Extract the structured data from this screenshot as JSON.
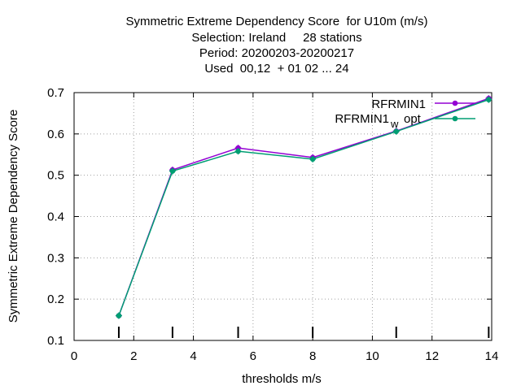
{
  "chart_data": {
    "type": "line",
    "title": [
      "Symmetric Extreme Dependency Score  for U10m (m/s)",
      "Selection: Ireland     28 stations",
      "Period: 20200203-20200217",
      "Used  00,12  + 01 02 ... 24"
    ],
    "xlabel": "thresholds m/s",
    "ylabel": "Symmetric Extreme Dependency Score",
    "xlim": [
      0,
      14
    ],
    "ylim": [
      0.1,
      0.7
    ],
    "xticks": [
      "0",
      "2",
      "4",
      "6",
      "8",
      "10",
      "12",
      "14"
    ],
    "yticks": [
      "0.1",
      "0.2",
      "0.3",
      "0.4",
      "0.5",
      "0.6",
      "0.7"
    ],
    "grid": true,
    "legend_position": "top-right",
    "threshold_markers": [
      1.5,
      3.3,
      5.5,
      8.0,
      10.8,
      13.9
    ],
    "series": [
      {
        "name": "RFRMIN1",
        "color": "#9400d3",
        "x": [
          1.5,
          3.3,
          5.5,
          8.0,
          10.8,
          13.9
        ],
        "y": [
          0.16,
          0.513,
          0.566,
          0.543,
          0.607,
          0.686
        ]
      },
      {
        "name_main": "RFRMIN1",
        "name_sub": "w",
        "name_tail": "opt",
        "color": "#009e73",
        "x": [
          1.5,
          3.3,
          5.5,
          8.0,
          10.8,
          13.9
        ],
        "y": [
          0.16,
          0.51,
          0.558,
          0.539,
          0.606,
          0.683
        ]
      }
    ]
  }
}
